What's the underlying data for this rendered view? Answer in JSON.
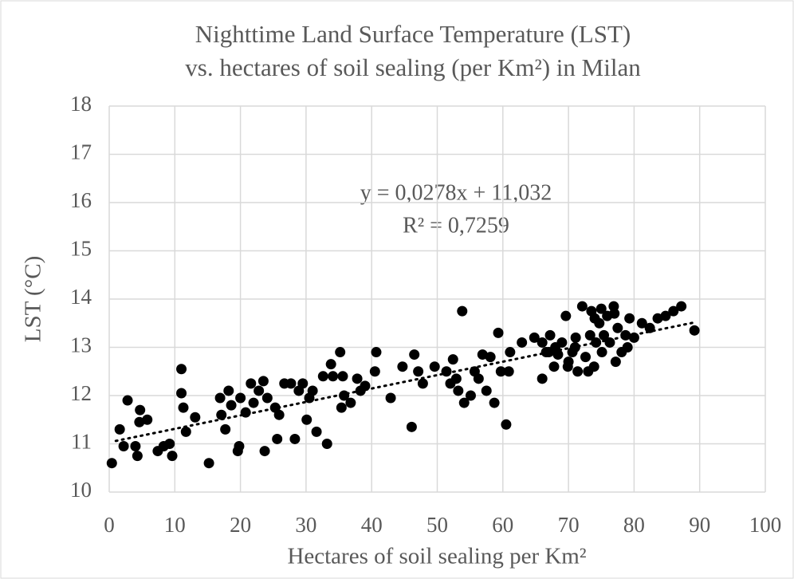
{
  "chart_data": {
    "type": "scatter",
    "title": [
      "Nighttime Land Surface Temperature (LST)",
      "vs. hectares of soil sealing (per Km²) in Milan"
    ],
    "x_label": "Hectares of soil sealing per Km²",
    "y_label": "LST (°C)",
    "annotations": [
      "y = 0,0278x + 11,032",
      "R² = 0,7259"
    ],
    "series": [
      {
        "color": "#000000",
        "x": [
          0.4,
          1.6,
          2.2,
          2.8,
          4,
          4.3,
          4.6,
          4.7,
          5.8,
          7.4,
          8.3,
          9.2,
          9.6,
          11,
          11,
          11.3,
          11.7,
          13.1,
          15.2,
          16.9,
          17.1,
          17.7,
          18.2,
          18.6,
          19.6,
          19.8,
          20,
          20.8,
          21.6,
          22,
          22.8,
          23.5,
          23.7,
          24.1,
          25.3,
          25.6,
          25.9,
          26.7,
          27.7,
          28.3,
          28.9,
          29.5,
          30.1,
          30.5,
          31,
          31.6,
          32.6,
          33.2,
          33.8,
          34.1,
          35.2,
          35.4,
          35.6,
          35.8,
          36.8,
          37.8,
          38.3,
          39,
          40.5,
          40.7,
          42.9,
          44.7,
          46.1,
          46.5,
          47.1,
          47.8,
          49.6,
          51.4,
          52,
          52.4,
          52.9,
          53.2,
          53.8,
          54.1,
          55.1,
          55.7,
          56.3,
          56.9,
          57.5,
          58.1,
          58.7,
          59.3,
          59.7,
          60.5,
          60.9,
          61.1,
          62.9,
          64.8,
          66,
          66.6,
          67.2,
          67.8,
          68.4,
          69,
          69.6,
          69.9,
          70.6,
          71.1,
          71.4,
          72.1,
          72.6,
          73.3,
          73.5,
          73.9,
          74.2,
          74.7,
          75.1,
          75.4,
          75.9,
          76.3,
          76.9,
          77.2,
          77.5,
          78.1,
          78.7,
          79.3,
          80,
          81.2,
          82.4,
          83.6,
          84.8,
          86,
          87.2,
          89.2,
          66,
          68,
          70,
          73,
          74,
          77,
          79,
          71,
          67,
          75
        ],
        "values": [
          10.6,
          11.3,
          10.95,
          11.9,
          10.95,
          10.75,
          11.45,
          11.7,
          11.5,
          10.85,
          10.95,
          11.0,
          10.75,
          12.55,
          12.05,
          11.75,
          11.25,
          11.55,
          10.6,
          11.95,
          11.6,
          11.3,
          12.1,
          11.8,
          10.85,
          10.95,
          11.95,
          11.65,
          12.25,
          11.85,
          12.1,
          12.3,
          10.85,
          11.95,
          11.75,
          11.1,
          11.6,
          12.25,
          12.25,
          11.1,
          12.1,
          12.25,
          11.5,
          11.95,
          12.1,
          11.25,
          12.4,
          11.0,
          12.65,
          12.4,
          12.9,
          11.75,
          12.4,
          12.0,
          11.85,
          12.35,
          12.1,
          12.2,
          12.5,
          12.9,
          11.95,
          12.6,
          11.35,
          12.85,
          12.5,
          12.25,
          12.6,
          12.5,
          12.25,
          12.75,
          12.35,
          12.1,
          13.75,
          11.85,
          12.0,
          12.5,
          12.35,
          12.85,
          12.1,
          12.8,
          11.85,
          13.3,
          12.5,
          11.4,
          12.5,
          12.9,
          13.1,
          13.2,
          12.35,
          12.9,
          13.25,
          12.6,
          12.85,
          13.1,
          13.65,
          12.6,
          12.9,
          13.2,
          12.5,
          13.85,
          12.8,
          13.25,
          13.75,
          12.6,
          13.1,
          13.5,
          12.9,
          13.25,
          13.65,
          13.1,
          13.85,
          12.7,
          13.4,
          12.9,
          13.25,
          13.6,
          13.2,
          13.5,
          13.4,
          13.6,
          13.65,
          13.75,
          13.85,
          13.35,
          13.1,
          13.0,
          12.7,
          12.5,
          13.6,
          13.7,
          13.0,
          13.0,
          12.9,
          13.8
        ]
      }
    ],
    "trendline": {
      "x": [
        1,
        89
      ],
      "values": [
        11.06,
        13.51
      ],
      "color": "#000000"
    },
    "xlim": [
      0,
      100
    ],
    "xticks": [
      0,
      10,
      20,
      30,
      40,
      50,
      60,
      70,
      80,
      90,
      100
    ],
    "ylim": [
      10,
      18
    ],
    "yticks": [
      10,
      11,
      12,
      13,
      14,
      15,
      16,
      17,
      18
    ],
    "grid": true
  }
}
